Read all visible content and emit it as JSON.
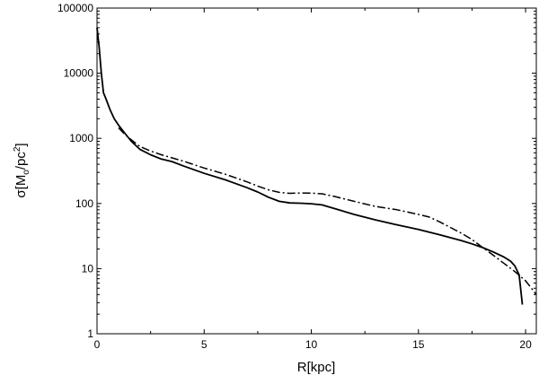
{
  "chart_data": {
    "type": "line",
    "title": "",
    "xlabel": "R[kpc]",
    "ylabel": {
      "symbol": "σ[M",
      "sub": "o",
      "mid": "/pc",
      "sup": "2",
      "end": "]"
    },
    "xlim": [
      0,
      20.5
    ],
    "ylim": [
      1,
      100000
    ],
    "yscale": "log",
    "grid": false,
    "legend": "none",
    "xticks": [
      0,
      5,
      10,
      15,
      20
    ],
    "xtick_labels": [
      "0",
      "5",
      "10",
      "15",
      "20"
    ],
    "yticks": [
      1,
      10,
      100,
      1000,
      10000,
      100000
    ],
    "ytick_labels": [
      "1",
      "10",
      "100",
      "1000",
      "10000",
      "100000"
    ],
    "series": [
      {
        "style": "solid",
        "color": "#000000",
        "x": [
          0.0,
          0.1,
          0.2,
          0.3,
          0.4,
          0.6,
          0.8,
          1.0,
          1.3,
          1.6,
          2.0,
          2.5,
          3.0,
          3.5,
          4.0,
          5.0,
          6.0,
          7.0,
          7.5,
          8.0,
          8.5,
          9.0,
          9.5,
          10.0,
          10.5,
          11.0,
          12.0,
          13.0,
          14.0,
          15.0,
          16.0,
          17.0,
          17.5,
          18.0,
          18.5,
          19.0,
          19.3,
          19.5,
          19.7,
          19.85
        ],
        "y": [
          50000,
          25000,
          10000,
          5000,
          4200,
          2800,
          2000,
          1600,
          1200,
          900,
          680,
          560,
          480,
          440,
          380,
          290,
          230,
          175,
          150,
          125,
          108,
          102,
          101,
          99,
          95,
          85,
          68,
          56,
          47,
          40,
          33,
          27,
          24,
          21,
          18,
          15,
          13,
          11,
          8,
          2.8
        ]
      },
      {
        "style": "dashdot",
        "color": "#000000",
        "x": [
          1.0,
          1.3,
          1.6,
          2.0,
          2.5,
          3.0,
          4.0,
          5.0,
          6.0,
          7.0,
          7.5,
          8.0,
          8.5,
          9.0,
          9.5,
          10.0,
          10.5,
          11.0,
          12.0,
          13.0,
          14.0,
          15.0,
          15.5,
          16.0,
          17.0,
          17.5,
          18.0,
          18.5,
          19.0,
          19.5,
          20.0,
          20.5
        ],
        "y": [
          1450,
          1150,
          950,
          750,
          640,
          560,
          450,
          350,
          280,
          215,
          185,
          162,
          148,
          143,
          145,
          144,
          141,
          130,
          108,
          90,
          80,
          68,
          62,
          52,
          35,
          28,
          21,
          16,
          12,
          9,
          6.5,
          4
        ]
      }
    ]
  }
}
